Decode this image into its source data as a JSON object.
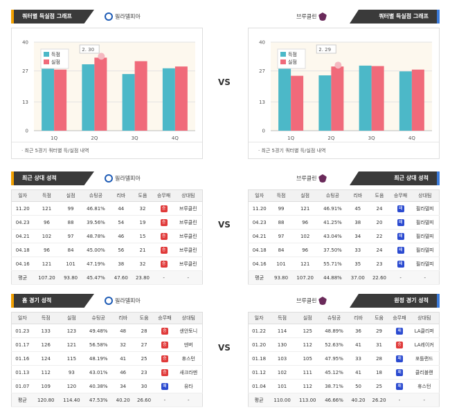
{
  "vs_label": "VS",
  "sections": {
    "quarter": {
      "title_left": "쿼터별 득실점 그래프",
      "title_right": "쿼터별 득실점 그래프",
      "note": "최근 5경기 쿼터별 득/실점 내역"
    },
    "recent": {
      "title_left": "최근 상대 성적",
      "title_right": "최근 상대 성적"
    },
    "venue": {
      "title_left": "홈 경기 성적",
      "title_right": "원정 경기 성적"
    }
  },
  "teams": {
    "left": "필라델피아",
    "right": "브루클린"
  },
  "legend": {
    "scored": "득점",
    "allowed": "실점"
  },
  "colors": {
    "scored": "#4cb8c8",
    "allowed": "#f06a7a",
    "win": "#e03a3a",
    "loss": "#2a4ad0"
  },
  "columns": [
    "일자",
    "득점",
    "실점",
    "슈팅공",
    "리바",
    "도움",
    "승무패",
    "상대팀"
  ],
  "chart_data": [
    {
      "type": "bar",
      "categories": [
        "1Q",
        "2Q",
        "3Q",
        "4Q"
      ],
      "series": [
        {
          "name": "득점",
          "values": [
            28.4,
            30.0,
            25.6,
            28.2
          ]
        },
        {
          "name": "실점",
          "values": [
            27.6,
            33.0,
            31.4,
            29.0
          ]
        }
      ],
      "ylim": [
        0,
        40
      ],
      "yticks": [
        0,
        13,
        27,
        40
      ],
      "annotation": "2. 30",
      "grid": true,
      "legend": "top-left"
    },
    {
      "type": "bar",
      "categories": [
        "1Q",
        "2Q",
        "3Q",
        "4Q"
      ],
      "series": [
        {
          "name": "득점",
          "values": [
            30.2,
            25.0,
            29.4,
            26.8
          ]
        },
        {
          "name": "실점",
          "values": [
            24.8,
            29.0,
            29.2,
            27.6
          ]
        }
      ],
      "ylim": [
        0,
        40
      ],
      "yticks": [
        0,
        13,
        27,
        40
      ],
      "annotation": "2. 29",
      "grid": true,
      "legend": "top-left"
    }
  ],
  "recent_left": [
    [
      "11.20",
      "121",
      "99",
      "46.81%",
      "44",
      "32",
      "승",
      "브루클린"
    ],
    [
      "04.23",
      "96",
      "88",
      "39.56%",
      "54",
      "19",
      "승",
      "브루클린"
    ],
    [
      "04.21",
      "102",
      "97",
      "48.78%",
      "46",
      "15",
      "승",
      "브루클린"
    ],
    [
      "04.18",
      "96",
      "84",
      "45.00%",
      "56",
      "21",
      "승",
      "브루클린"
    ],
    [
      "04.16",
      "121",
      "101",
      "47.19%",
      "38",
      "32",
      "승",
      "브루클린"
    ]
  ],
  "recent_left_avg": [
    "평균",
    "107.20",
    "93.80",
    "45.47%",
    "47.60",
    "23.80",
    "-",
    "-"
  ],
  "recent_right": [
    [
      "11.20",
      "99",
      "121",
      "46.91%",
      "45",
      "24",
      "패",
      "필라델피"
    ],
    [
      "04.23",
      "88",
      "96",
      "41.25%",
      "38",
      "20",
      "패",
      "필라델피"
    ],
    [
      "04.21",
      "97",
      "102",
      "43.04%",
      "34",
      "22",
      "패",
      "필라델피"
    ],
    [
      "04.18",
      "84",
      "96",
      "37.50%",
      "33",
      "24",
      "패",
      "필라델피"
    ],
    [
      "04.16",
      "101",
      "121",
      "55.71%",
      "35",
      "23",
      "패",
      "필라델피"
    ]
  ],
  "recent_right_avg": [
    "평균",
    "93.80",
    "107.20",
    "44.88%",
    "37.00",
    "22.60",
    "-",
    "-"
  ],
  "home_left": [
    [
      "01.23",
      "133",
      "123",
      "49.48%",
      "48",
      "28",
      "승",
      "샌안토니"
    ],
    [
      "01.17",
      "126",
      "121",
      "56.58%",
      "32",
      "27",
      "승",
      "덴버"
    ],
    [
      "01.16",
      "124",
      "115",
      "48.19%",
      "41",
      "25",
      "승",
      "휴스턴"
    ],
    [
      "01.13",
      "112",
      "93",
      "43.01%",
      "46",
      "23",
      "승",
      "새크라멘"
    ],
    [
      "01.07",
      "109",
      "120",
      "40.38%",
      "34",
      "30",
      "패",
      "유타"
    ]
  ],
  "home_left_avg": [
    "평균",
    "120.80",
    "114.40",
    "47.53%",
    "40.20",
    "26.60",
    "-",
    "-"
  ],
  "away_right": [
    [
      "01.22",
      "114",
      "125",
      "48.89%",
      "36",
      "29",
      "패",
      "LA클리퍼"
    ],
    [
      "01.20",
      "130",
      "112",
      "52.63%",
      "41",
      "31",
      "승",
      "LA레이커"
    ],
    [
      "01.18",
      "103",
      "105",
      "47.95%",
      "33",
      "28",
      "패",
      "포틀랜드"
    ],
    [
      "01.12",
      "102",
      "111",
      "45.12%",
      "41",
      "18",
      "패",
      "클리블랜"
    ],
    [
      "01.04",
      "101",
      "112",
      "38.71%",
      "50",
      "25",
      "패",
      "휴스턴"
    ]
  ],
  "away_right_avg": [
    "평균",
    "110.00",
    "113.00",
    "46.66%",
    "40.20",
    "26.20",
    "-",
    "-"
  ]
}
